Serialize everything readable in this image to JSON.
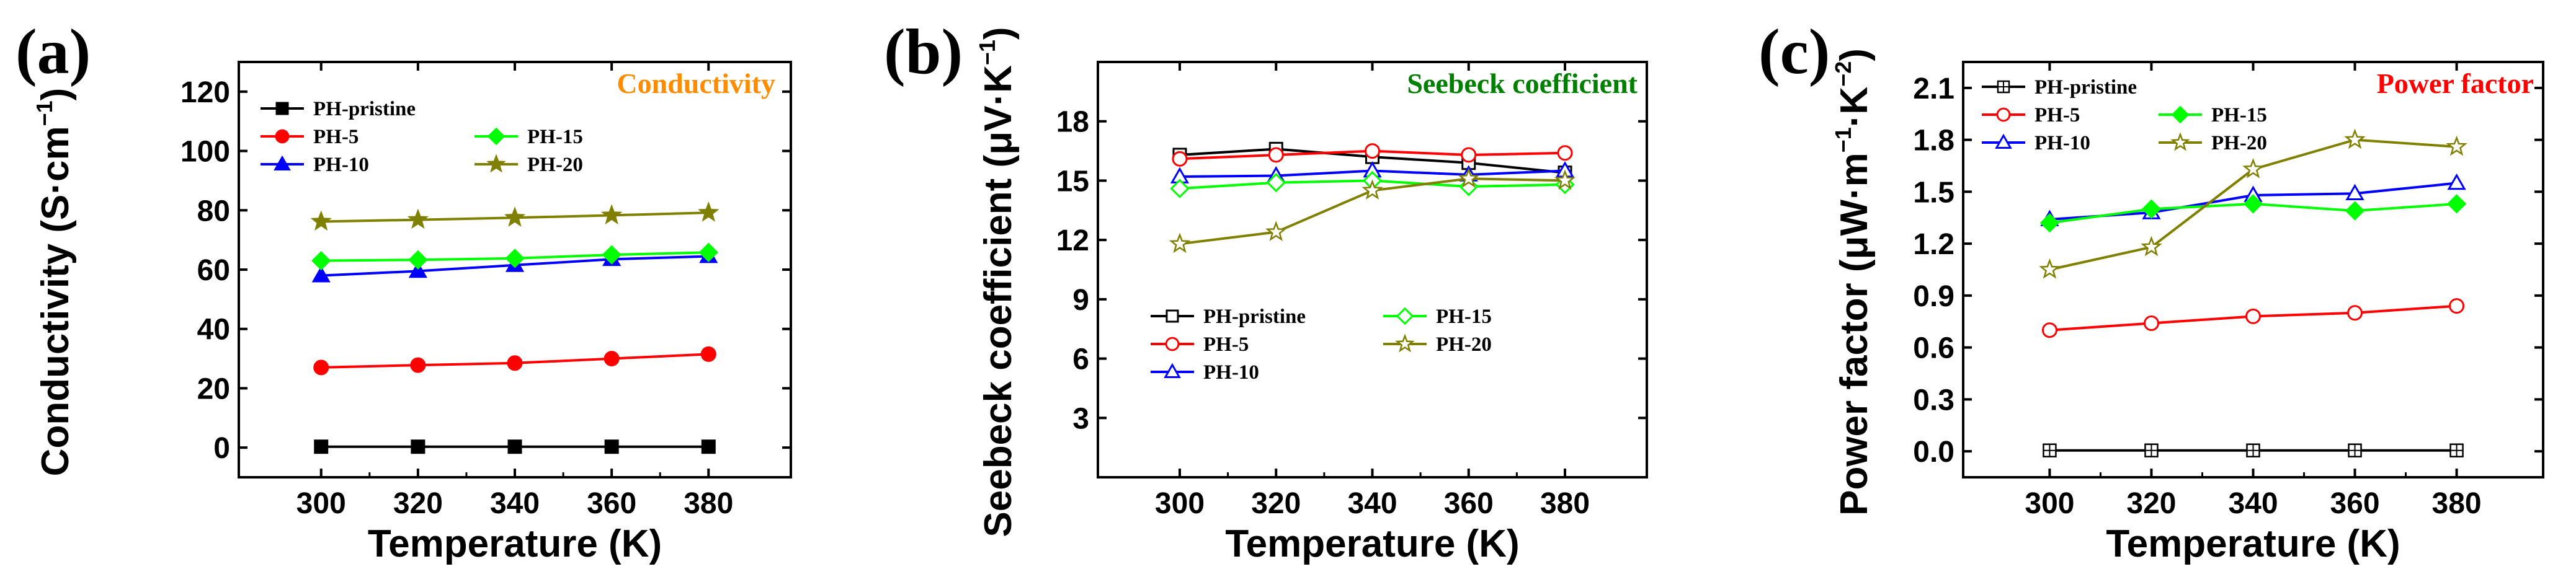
{
  "chart_data": [
    {
      "panel": "(a)",
      "type": "line",
      "title": "Conductivity",
      "title_color": "#ff8c00",
      "xlabel": "Temperature (K)",
      "ylabel": "Conductivity (S·cm",
      "ylabel_sup": "−1",
      "ylabel_close": ")",
      "x": [
        300,
        320,
        340,
        360,
        380
      ],
      "xlim": [
        283,
        397
      ],
      "ylim": [
        -10,
        130
      ],
      "xticks": [
        300,
        320,
        340,
        360,
        380
      ],
      "yticks": [
        0,
        20,
        40,
        60,
        80,
        100,
        120
      ],
      "series": [
        {
          "name": "PH-pristine",
          "color": "#000000",
          "marker": "square",
          "filled": true,
          "values": [
            0.3,
            0.3,
            0.3,
            0.3,
            0.3
          ]
        },
        {
          "name": "PH-5",
          "color": "#ff0000",
          "marker": "circle",
          "filled": true,
          "values": [
            27,
            27.8,
            28.5,
            30,
            31.5
          ]
        },
        {
          "name": "PH-10",
          "color": "#0000ff",
          "marker": "triangle",
          "filled": true,
          "values": [
            58,
            59.5,
            61.5,
            63.5,
            64.5
          ]
        },
        {
          "name": "PH-15",
          "color": "#00ff00",
          "marker": "diamond",
          "filled": true,
          "values": [
            63,
            63.3,
            63.8,
            65,
            65.8
          ]
        },
        {
          "name": "PH-20",
          "color": "#808000",
          "marker": "star",
          "filled": true,
          "values": [
            76.2,
            76.8,
            77.5,
            78.3,
            79.2
          ]
        }
      ]
    },
    {
      "panel": "(b)",
      "type": "line",
      "title": "Seebeck coefficient",
      "title_color": "#008000",
      "xlabel": "Temperature (K)",
      "ylabel": "Seebeck coefficient (μV·K",
      "ylabel_sup": "−1",
      "ylabel_close": ")",
      "x": [
        300,
        320,
        340,
        360,
        380
      ],
      "xlim": [
        283,
        397
      ],
      "ylim": [
        0,
        21
      ],
      "xticks": [
        300,
        320,
        340,
        360,
        380
      ],
      "yticks": [
        3,
        6,
        9,
        12,
        15,
        18
      ],
      "series": [
        {
          "name": "PH-pristine",
          "color": "#000000",
          "marker": "square",
          "filled": false,
          "values": [
            16.3,
            16.6,
            16.2,
            15.9,
            15.4
          ]
        },
        {
          "name": "PH-5",
          "color": "#ff0000",
          "marker": "circle",
          "filled": false,
          "values": [
            16.1,
            16.3,
            16.5,
            16.3,
            16.4
          ]
        },
        {
          "name": "PH-10",
          "color": "#0000ff",
          "marker": "triangle",
          "filled": false,
          "values": [
            15.2,
            15.25,
            15.5,
            15.3,
            15.5
          ]
        },
        {
          "name": "PH-15",
          "color": "#00ff00",
          "marker": "diamond",
          "filled": false,
          "values": [
            14.6,
            14.9,
            15.0,
            14.7,
            14.8
          ]
        },
        {
          "name": "PH-20",
          "color": "#808000",
          "marker": "star",
          "filled": false,
          "values": [
            11.8,
            12.4,
            14.5,
            15.1,
            15.0
          ]
        }
      ]
    },
    {
      "panel": "(c)",
      "type": "line",
      "title": "Power factor",
      "title_color": "#ff0000",
      "xlabel": "Temperature (K)",
      "ylabel": "Power factor (μW·m",
      "ylabel_sup": "−1",
      "ylabel_mid": "·K",
      "ylabel_sup2": "−2",
      "ylabel_close": ")",
      "x": [
        300,
        320,
        340,
        360,
        380
      ],
      "xlim": [
        283,
        397
      ],
      "ylim": [
        -0.15,
        2.25
      ],
      "xticks": [
        300,
        320,
        340,
        360,
        380
      ],
      "yticks": [
        0.0,
        0.3,
        0.6,
        0.9,
        1.2,
        1.5,
        1.8,
        2.1
      ],
      "series": [
        {
          "name": "PH-pristine",
          "color": "#000000",
          "marker": "crosssquare",
          "filled": false,
          "values": [
            0.005,
            0.005,
            0.005,
            0.005,
            0.005
          ]
        },
        {
          "name": "PH-5",
          "color": "#ff0000",
          "marker": "circle",
          "filled": false,
          "values": [
            0.7,
            0.74,
            0.78,
            0.8,
            0.84
          ]
        },
        {
          "name": "PH-10",
          "color": "#0000ff",
          "marker": "triangle",
          "filled": false,
          "values": [
            1.34,
            1.38,
            1.48,
            1.49,
            1.55
          ]
        },
        {
          "name": "PH-15",
          "color": "#00ff00",
          "marker": "diamond",
          "filled": true,
          "values": [
            1.32,
            1.4,
            1.43,
            1.39,
            1.43
          ]
        },
        {
          "name": "PH-20",
          "color": "#808000",
          "marker": "star",
          "filled": false,
          "values": [
            1.05,
            1.18,
            1.63,
            1.8,
            1.76
          ]
        }
      ]
    }
  ]
}
